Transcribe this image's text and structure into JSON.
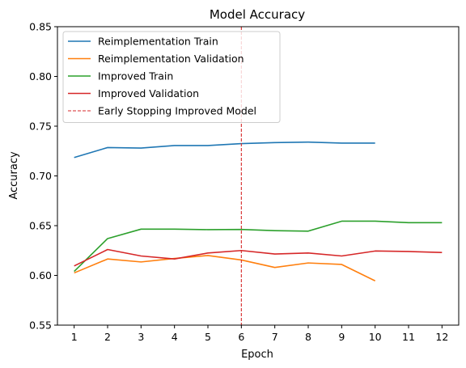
{
  "chart_data": {
    "type": "line",
    "title": "Model Accuracy",
    "xlabel": "Epoch",
    "ylabel": "Accuracy",
    "xlim": [
      0.5,
      12.5
    ],
    "ylim": [
      0.55,
      0.85
    ],
    "xticks": [
      1,
      2,
      3,
      4,
      5,
      6,
      7,
      8,
      9,
      10,
      11,
      12
    ],
    "yticks": [
      "0.55",
      "0.60",
      "0.65",
      "0.70",
      "0.75",
      "0.80",
      "0.85"
    ],
    "grid": false,
    "legend_position": "upper-left",
    "series": [
      {
        "name": "Reimplementation Train",
        "color": "#1f77b4",
        "x": [
          1,
          2,
          3,
          4,
          5,
          6,
          7,
          8,
          9,
          10
        ],
        "values": [
          0.7185,
          0.7285,
          0.728,
          0.7305,
          0.7305,
          0.7325,
          0.7335,
          0.734,
          0.733,
          0.733
        ]
      },
      {
        "name": "Reimplementation Validation",
        "color": "#ff7f0e",
        "x": [
          1,
          2,
          3,
          4,
          5,
          6,
          7,
          8,
          9,
          10
        ],
        "values": [
          0.6025,
          0.6165,
          0.6135,
          0.617,
          0.62,
          0.6155,
          0.608,
          0.6125,
          0.611,
          0.5945
        ]
      },
      {
        "name": "Improved Train",
        "color": "#2ca02c",
        "x": [
          1,
          2,
          3,
          4,
          5,
          6,
          7,
          8,
          9,
          10,
          11,
          12
        ],
        "values": [
          0.604,
          0.637,
          0.6465,
          0.6465,
          0.646,
          0.6462,
          0.645,
          0.6445,
          0.6545,
          0.6545,
          0.653,
          0.653
        ]
      },
      {
        "name": "Improved Validation",
        "color": "#d62728",
        "x": [
          1,
          2,
          3,
          4,
          5,
          6,
          7,
          8,
          9,
          10,
          11,
          12
        ],
        "values": [
          0.6095,
          0.626,
          0.6195,
          0.6165,
          0.6225,
          0.625,
          0.6215,
          0.6225,
          0.6195,
          0.6245,
          0.624,
          0.623
        ]
      }
    ],
    "vline": {
      "name": "Early Stopping Improved Model",
      "x": 6,
      "color": "#d62728",
      "style": "dashed"
    }
  }
}
